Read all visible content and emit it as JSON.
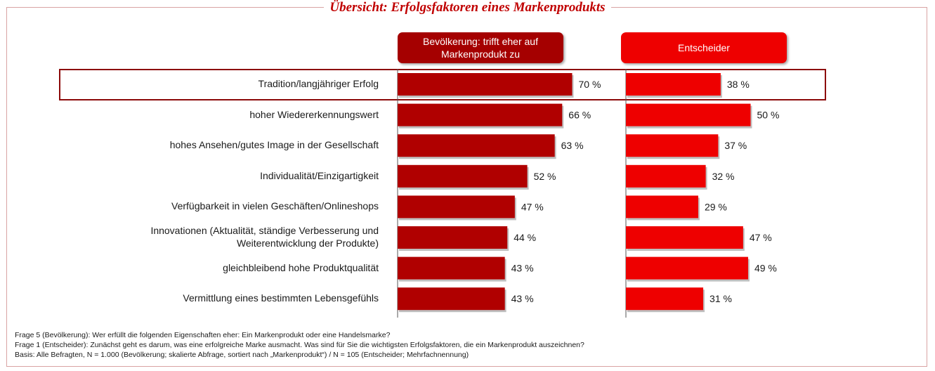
{
  "title": "Übersicht: Erfolgsfaktoren eines Markenprodukts",
  "headers": {
    "population": "Bevölkerung: trifft eher auf Markenprodukt zu",
    "decision_makers": "Entscheider"
  },
  "colors": {
    "population_bar": "#b00000",
    "decision_bar": "#ee0000",
    "title": "#c00000",
    "highlight_border": "#8c0a0a"
  },
  "chart_data": {
    "type": "bar",
    "orientation": "horizontal",
    "categories": [
      "Tradition/langjähriger Erfolg",
      "hoher Wiedererkennungswert",
      "hohes Ansehen/gutes Image in der Gesellschaft",
      "Individualität/Einzigartigkeit",
      "Verfügbarkeit in vielen Geschäften/Onlineshops",
      "Innovationen (Aktualität, ständige Verbesserung und Weiterentwicklung der Produkte)",
      "gleichbleibend hohe Produktqualität",
      "Vermittlung eines bestimmten Lebensgefühls"
    ],
    "series": [
      {
        "name": "Bevölkerung: trifft eher auf Markenprodukt zu",
        "values": [
          70,
          66,
          63,
          52,
          47,
          44,
          43,
          43
        ],
        "labels": [
          "70 %",
          "66 %",
          "63 %",
          "52 %",
          "47 %",
          "44 %",
          "43 %",
          "43 %"
        ]
      },
      {
        "name": "Entscheider",
        "values": [
          38,
          50,
          37,
          32,
          29,
          47,
          49,
          31
        ],
        "labels": [
          "38 %",
          "50 %",
          "37 %",
          "32 %",
          "29 %",
          "47 %",
          "49 %",
          "31 %"
        ]
      }
    ],
    "highlighted_category": "Tradition/langjähriger Erfolg",
    "xlim": [
      0,
      100
    ]
  },
  "footnotes": [
    "Frage 5 (Bevölkerung): Wer erfüllt die folgenden Eigenschaften eher: Ein Markenprodukt oder eine Handelsmarke?",
    "Frage 1 (Entscheider): Zunächst geht es darum, was eine erfolgreiche Marke ausmacht. Was sind für Sie die wichtigsten Erfolgsfaktoren, die ein Markenprodukt auszeichnen?",
    "Basis: Alle Befragten, N = 1.000 (Bevölkerung; skalierte Abfrage, sortiert nach „Markenprodukt“) / N = 105 (Entscheider; Mehrfachnennung)"
  ]
}
